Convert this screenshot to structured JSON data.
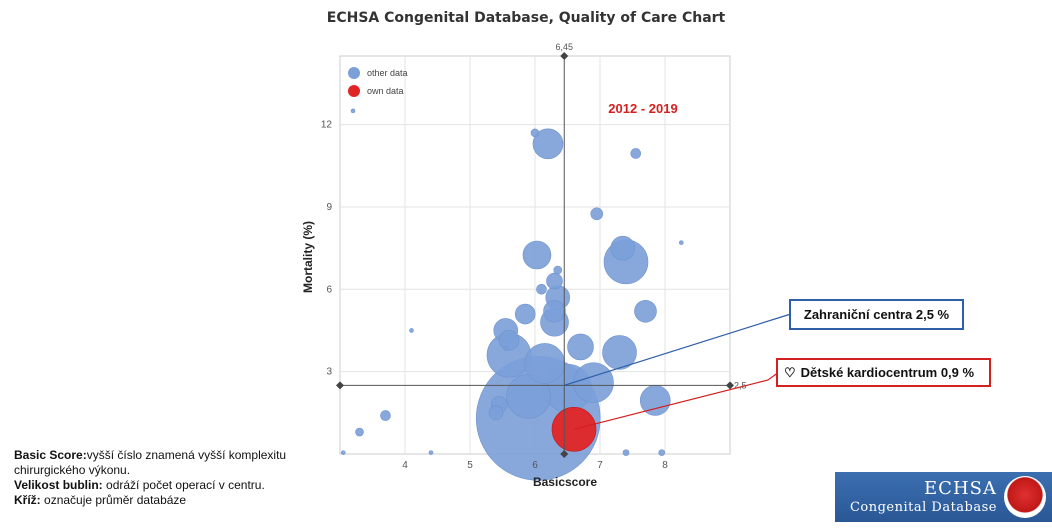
{
  "title": "ECHSA Congenital Database, Quality of Care Chart",
  "chart_data": {
    "type": "scatter",
    "title": "ECHSA Congenital Database, Quality of Care Chart",
    "xlabel": "Basicscore",
    "ylabel": "Mortality (%)",
    "xlim": [
      3.0,
      9.0
    ],
    "ylim": [
      0,
      14.5
    ],
    "x_ticks": [
      "4",
      "5",
      "6",
      "7",
      "8"
    ],
    "y_ticks": [
      "3",
      "6",
      "9",
      "12"
    ],
    "grid": true,
    "legend_position": "top-left",
    "annotation": "2012 - 2019",
    "average_cross": {
      "x": 6.45,
      "y": 2.5,
      "x_label": "6,45",
      "y_label": "2,5"
    },
    "series": [
      {
        "name": "other data",
        "color": "#7b9fd8",
        "points": [
          {
            "x": 6.05,
            "y": 1.3,
            "size": 62
          },
          {
            "x": 5.6,
            "y": 3.6,
            "size": 22
          },
          {
            "x": 6.15,
            "y": 3.3,
            "size": 20
          },
          {
            "x": 6.5,
            "y": 2.4,
            "size": 24
          },
          {
            "x": 6.9,
            "y": 2.6,
            "size": 20
          },
          {
            "x": 5.9,
            "y": 2.1,
            "size": 22
          },
          {
            "x": 6.3,
            "y": 4.8,
            "size": 14
          },
          {
            "x": 7.3,
            "y": 3.7,
            "size": 17
          },
          {
            "x": 6.7,
            "y": 3.9,
            "size": 13
          },
          {
            "x": 7.4,
            "y": 7.0,
            "size": 22
          },
          {
            "x": 7.35,
            "y": 7.5,
            "size": 12
          },
          {
            "x": 6.03,
            "y": 7.25,
            "size": 14
          },
          {
            "x": 6.2,
            "y": 11.3,
            "size": 15
          },
          {
            "x": 7.55,
            "y": 10.95,
            "size": 5
          },
          {
            "x": 6.0,
            "y": 11.7,
            "size": 4
          },
          {
            "x": 6.95,
            "y": 8.75,
            "size": 6
          },
          {
            "x": 5.55,
            "y": 4.5,
            "size": 12
          },
          {
            "x": 5.6,
            "y": 4.15,
            "size": 10
          },
          {
            "x": 5.85,
            "y": 5.1,
            "size": 10
          },
          {
            "x": 6.3,
            "y": 5.2,
            "size": 11
          },
          {
            "x": 6.35,
            "y": 5.7,
            "size": 12
          },
          {
            "x": 7.7,
            "y": 5.2,
            "size": 11
          },
          {
            "x": 7.85,
            "y": 1.95,
            "size": 15
          },
          {
            "x": 5.45,
            "y": 1.8,
            "size": 8
          },
          {
            "x": 5.4,
            "y": 1.5,
            "size": 7
          },
          {
            "x": 6.3,
            "y": 6.3,
            "size": 8
          },
          {
            "x": 6.35,
            "y": 6.7,
            "size": 4
          },
          {
            "x": 6.1,
            "y": 6.0,
            "size": 5
          },
          {
            "x": 3.7,
            "y": 1.4,
            "size": 5
          },
          {
            "x": 3.3,
            "y": 0.8,
            "size": 4
          },
          {
            "x": 3.2,
            "y": 12.5,
            "size": 2
          },
          {
            "x": 4.1,
            "y": 4.5,
            "size": 2
          },
          {
            "x": 8.25,
            "y": 7.7,
            "size": 2
          },
          {
            "x": 3.05,
            "y": 0.05,
            "size": 2
          },
          {
            "x": 7.4,
            "y": 0.05,
            "size": 3
          },
          {
            "x": 7.95,
            "y": 0.05,
            "size": 3
          },
          {
            "x": 5.55,
            "y": 3.85,
            "size": 2
          },
          {
            "x": 4.4,
            "y": 0.05,
            "size": 2
          }
        ]
      },
      {
        "name": "own data",
        "color": "#e02525",
        "points": [
          {
            "x": 6.6,
            "y": 0.9,
            "size": 22
          }
        ]
      }
    ]
  },
  "callouts": {
    "foreign": "Zahraniční centra 2,5 %",
    "own": "Dětské kardiocentrum 0,9 %"
  },
  "explanation": {
    "basic_label": "Basic Score:",
    "basic_text": "vyšší číslo znamená vyšší komplexitu",
    "basic_text2": "chirurgického výkonu.",
    "size_label": "Velikost bublin:",
    "size_text": "odráží počet operací v centru.",
    "cross_label": "Kříž:",
    "cross_text": "označuje průměr databáze"
  },
  "logo": {
    "line1": "ECHSA",
    "line2": "Congenital Database"
  }
}
